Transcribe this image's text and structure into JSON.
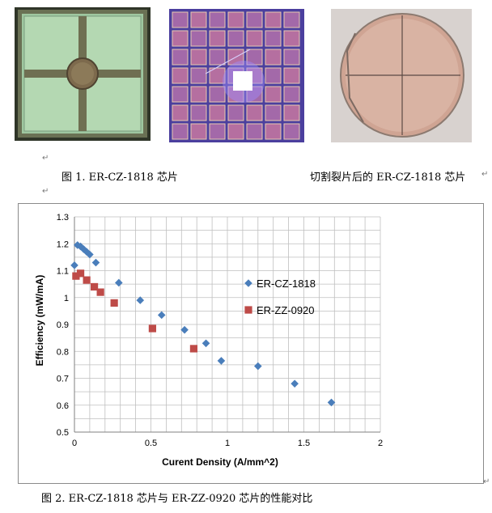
{
  "captions": {
    "figure1": "图 1. ER-CZ-1818 芯片",
    "figure1_right": "切割裂片后的 ER-CZ-1818 芯片",
    "figure2": "图 2. ER-CZ-1818 芯片与 ER-ZZ-0920 芯片的性能对比"
  },
  "marks": {
    "paragraph": "↵",
    "return": "↵"
  },
  "photos": [
    {
      "name": "single-chip-photo",
      "description": "green die with cross and round pad"
    },
    {
      "name": "wafer-grid-photo",
      "description": "purple-lit chip array"
    },
    {
      "name": "wafer-disk-photo",
      "description": "round wafer after dicing"
    }
  ],
  "colors": {
    "series1": "#4a7ebb",
    "series2": "#be4b48",
    "grid": "#bfbfbf"
  },
  "chart_data": {
    "type": "scatter",
    "xlabel": "Curent Density (A/mm^2)",
    "ylabel": "Efficiency (mW/mA)",
    "xlim": [
      0,
      2
    ],
    "ylim": [
      0.5,
      1.3
    ],
    "x_ticks": [
      "0",
      "0.5",
      "1",
      "1.5",
      "2"
    ],
    "y_ticks": [
      "0.5",
      "0.6",
      "0.7",
      "0.8",
      "0.9",
      "1",
      "1.1",
      "1.2",
      "1.3"
    ],
    "grid": true,
    "legend_position": "right",
    "series": [
      {
        "name": "ER-CZ-1818",
        "marker": "diamond",
        "color": "#4a7ebb",
        "points": [
          [
            0.0,
            1.12
          ],
          [
            0.02,
            1.195
          ],
          [
            0.04,
            1.19
          ],
          [
            0.06,
            1.18
          ],
          [
            0.08,
            1.17
          ],
          [
            0.1,
            1.16
          ],
          [
            0.14,
            1.13
          ],
          [
            0.29,
            1.055
          ],
          [
            0.43,
            0.99
          ],
          [
            0.57,
            0.935
          ],
          [
            0.72,
            0.88
          ],
          [
            0.86,
            0.83
          ],
          [
            0.96,
            0.765
          ],
          [
            1.2,
            0.745
          ],
          [
            1.44,
            0.68
          ],
          [
            1.68,
            0.61
          ]
        ]
      },
      {
        "name": "ER-ZZ-0920",
        "marker": "square",
        "color": "#be4b48",
        "points": [
          [
            0.01,
            1.08
          ],
          [
            0.04,
            1.09
          ],
          [
            0.08,
            1.065
          ],
          [
            0.13,
            1.04
          ],
          [
            0.17,
            1.02
          ],
          [
            0.26,
            0.98
          ],
          [
            0.51,
            0.885
          ],
          [
            0.78,
            0.81
          ]
        ]
      }
    ]
  }
}
